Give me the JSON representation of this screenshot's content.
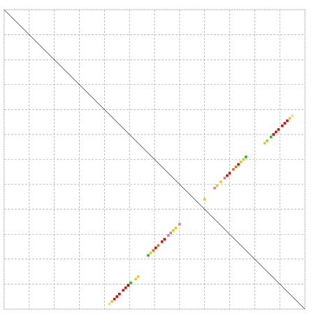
{
  "chart_data": {
    "type": "scatter",
    "title": "",
    "xlabel": "",
    "ylabel": "",
    "xlim": [
      0,
      12
    ],
    "ylim": [
      0,
      12
    ],
    "grid": true,
    "grid_columns": 12,
    "grid_rows": 12,
    "diagonal": true,
    "colors": {
      "red": "#cc1111",
      "dark_red": "#a30f0f",
      "orange": "#dd7711",
      "yellow": "#ddcc22",
      "lime": "#aacc22",
      "green": "#22bb22",
      "pink": "#e07a9a",
      "pale_yellow": "#eedd88",
      "grid": "#9a9a9a",
      "axis": "#333333"
    },
    "series": [
      {
        "points": [
          {
            "x": 4.2,
            "y": 0.2,
            "c": "pale_yellow"
          },
          {
            "x": 4.3,
            "y": 0.3,
            "c": "yellow"
          },
          {
            "x": 4.4,
            "y": 0.4,
            "c": "red"
          },
          {
            "x": 4.5,
            "y": 0.5,
            "c": "red"
          },
          {
            "x": 4.6,
            "y": 0.6,
            "c": "red"
          },
          {
            "x": 4.75,
            "y": 0.75,
            "c": "red"
          },
          {
            "x": 4.85,
            "y": 0.85,
            "c": "red"
          },
          {
            "x": 4.95,
            "y": 0.95,
            "c": "dark_red"
          },
          {
            "x": 5.05,
            "y": 1.05,
            "c": "green"
          },
          {
            "x": 5.25,
            "y": 1.2,
            "c": "yellow"
          },
          {
            "x": 5.35,
            "y": 1.3,
            "c": "yellow"
          }
        ]
      },
      {
        "points": [
          {
            "x": 5.75,
            "y": 2.15,
            "c": "green"
          },
          {
            "x": 5.85,
            "y": 2.25,
            "c": "yellow"
          },
          {
            "x": 5.95,
            "y": 2.35,
            "c": "orange"
          },
          {
            "x": 6.05,
            "y": 2.45,
            "c": "red"
          },
          {
            "x": 6.15,
            "y": 2.55,
            "c": "orange"
          },
          {
            "x": 6.3,
            "y": 2.7,
            "c": "red"
          },
          {
            "x": 6.4,
            "y": 2.8,
            "c": "red"
          },
          {
            "x": 6.55,
            "y": 2.95,
            "c": "pink"
          },
          {
            "x": 6.65,
            "y": 3.05,
            "c": "pink"
          },
          {
            "x": 6.75,
            "y": 3.15,
            "c": "yellow"
          },
          {
            "x": 6.85,
            "y": 3.25,
            "c": "yellow"
          },
          {
            "x": 7.0,
            "y": 3.4,
            "c": "pink"
          }
        ]
      },
      {
        "points": [
          {
            "x": 8.0,
            "y": 4.4,
            "c": "yellow"
          }
        ]
      },
      {
        "points": [
          {
            "x": 8.4,
            "y": 4.85,
            "c": "pink"
          },
          {
            "x": 8.5,
            "y": 4.95,
            "c": "yellow"
          },
          {
            "x": 8.65,
            "y": 5.1,
            "c": "yellow"
          },
          {
            "x": 8.8,
            "y": 5.25,
            "c": "pink"
          },
          {
            "x": 8.9,
            "y": 5.35,
            "c": "red"
          },
          {
            "x": 9.0,
            "y": 5.45,
            "c": "red"
          },
          {
            "x": 9.15,
            "y": 5.6,
            "c": "orange"
          },
          {
            "x": 9.25,
            "y": 5.7,
            "c": "orange"
          },
          {
            "x": 9.35,
            "y": 5.8,
            "c": "red"
          },
          {
            "x": 9.45,
            "y": 5.9,
            "c": "yellow"
          },
          {
            "x": 9.55,
            "y": 6.0,
            "c": "yellow"
          },
          {
            "x": 9.65,
            "y": 6.1,
            "c": "green"
          }
        ]
      },
      {
        "points": [
          {
            "x": 10.4,
            "y": 6.65,
            "c": "yellow"
          },
          {
            "x": 10.5,
            "y": 6.75,
            "c": "lime"
          },
          {
            "x": 10.65,
            "y": 6.9,
            "c": "green"
          },
          {
            "x": 10.75,
            "y": 7.0,
            "c": "red"
          },
          {
            "x": 10.85,
            "y": 7.1,
            "c": "red"
          },
          {
            "x": 10.95,
            "y": 7.2,
            "c": "red"
          },
          {
            "x": 11.1,
            "y": 7.35,
            "c": "red"
          },
          {
            "x": 11.2,
            "y": 7.45,
            "c": "red"
          },
          {
            "x": 11.3,
            "y": 7.55,
            "c": "red"
          },
          {
            "x": 11.4,
            "y": 7.65,
            "c": "yellow"
          },
          {
            "x": 11.5,
            "y": 7.75,
            "c": "pale_yellow"
          }
        ]
      }
    ]
  }
}
